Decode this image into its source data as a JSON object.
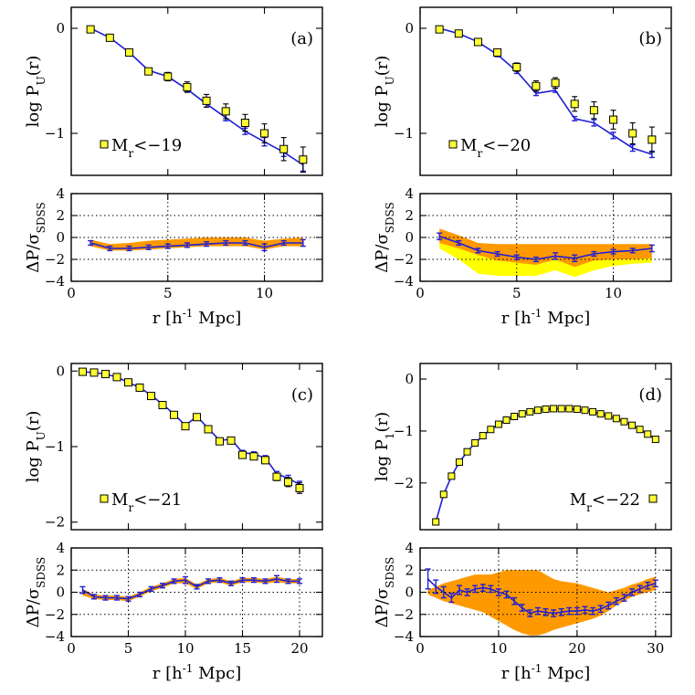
{
  "chart_data": [
    {
      "id": "a",
      "type": "line",
      "panel_label": "(a)",
      "legend_label": "M",
      "legend_sub": "r",
      "legend_value": "<−19",
      "legend_placement": "bottom-left",
      "top": {
        "ylabel": "log  P",
        "ylabel_sub": "U",
        "ylabel_tail": "(r)",
        "xlim": [
          0,
          13
        ],
        "ylim": [
          -1.4,
          0.2
        ],
        "xticks": [
          0,
          5,
          10
        ],
        "yticks": [
          0,
          -1
        ],
        "x": [
          1,
          2,
          3,
          4,
          5,
          6,
          7,
          8,
          9,
          10,
          11,
          12
        ],
        "model": [
          0,
          -0.09,
          -0.23,
          -0.4,
          -0.46,
          -0.58,
          -0.72,
          -0.85,
          -0.98,
          -1.08,
          -1.18,
          -1.3
        ],
        "model_err": [
          0.01,
          0.01,
          0.02,
          0.02,
          0.02,
          0.02,
          0.03,
          0.03,
          0.03,
          0.04,
          0.04,
          0.06
        ],
        "sdss": [
          -0.01,
          -0.09,
          -0.23,
          -0.41,
          -0.46,
          -0.56,
          -0.69,
          -0.79,
          -0.9,
          -1.0,
          -1.15,
          -1.25
        ],
        "sdss_err": [
          0.01,
          0.02,
          0.03,
          0.03,
          0.04,
          0.05,
          0.06,
          0.07,
          0.08,
          0.09,
          0.11,
          0.12
        ]
      },
      "bottom": {
        "ylabel": "ΔP/σ",
        "ylabel_sub": "SDSS",
        "xlabel": "r  [h",
        "xlabel_sup": "-1",
        "xlabel_tail": " Mpc]",
        "ylim": [
          -4,
          4
        ],
        "yticks": [
          -4,
          -2,
          0,
          2,
          4
        ],
        "xticks": [
          0,
          5,
          10
        ],
        "resid": [
          -0.5,
          -1.0,
          -1.0,
          -0.9,
          -0.8,
          -0.7,
          -0.6,
          -0.5,
          -0.5,
          -0.9,
          -0.5,
          -0.5
        ],
        "resid_err": [
          0.2,
          0.2,
          0.2,
          0.2,
          0.2,
          0.2,
          0.2,
          0.2,
          0.2,
          0.3,
          0.2,
          0.3
        ],
        "band_orange": [
          [
            -0.8,
            -0.2
          ],
          [
            -1.2,
            -0.6
          ],
          [
            -1.2,
            -0.5
          ],
          [
            -1.1,
            -0.3
          ],
          [
            -1.0,
            -0.2
          ],
          [
            -0.9,
            -0.1
          ],
          [
            -0.8,
            0.0
          ],
          [
            -0.8,
            0.0
          ],
          [
            -0.8,
            0.0
          ],
          [
            -1.1,
            -0.3
          ],
          [
            -0.8,
            -0.1
          ],
          [
            -0.8,
            0.0
          ]
        ],
        "band_yellow": null
      }
    },
    {
      "id": "b",
      "type": "line",
      "panel_label": "(b)",
      "legend_label": "M",
      "legend_sub": "r",
      "legend_value": "<−20",
      "legend_placement": "bottom-left",
      "top": {
        "ylabel": "log  P",
        "ylabel_sub": "U",
        "ylabel_tail": "(r)",
        "xlim": [
          0,
          13
        ],
        "ylim": [
          -1.4,
          0.2
        ],
        "xticks": [
          0,
          5,
          10
        ],
        "yticks": [
          0,
          -1
        ],
        "x": [
          1,
          2,
          3,
          4,
          5,
          6,
          7,
          8,
          9,
          10,
          11,
          12
        ],
        "model": [
          0,
          -0.05,
          -0.13,
          -0.25,
          -0.41,
          -0.62,
          -0.59,
          -0.86,
          -0.9,
          -1.02,
          -1.14,
          -1.2
        ],
        "model_err": [
          0.01,
          0.01,
          0.02,
          0.02,
          0.02,
          0.02,
          0.02,
          0.02,
          0.03,
          0.03,
          0.03,
          0.03
        ],
        "sdss": [
          -0.01,
          -0.05,
          -0.13,
          -0.23,
          -0.37,
          -0.55,
          -0.52,
          -0.72,
          -0.78,
          -0.87,
          -1.0,
          -1.06
        ],
        "sdss_err": [
          0.01,
          0.01,
          0.02,
          0.03,
          0.04,
          0.05,
          0.05,
          0.07,
          0.08,
          0.09,
          0.1,
          0.12
        ]
      },
      "bottom": {
        "ylabel": "ΔP/σ",
        "ylabel_sub": "SDSS",
        "xlabel": "r  [h",
        "xlabel_sup": "-1",
        "xlabel_tail": " Mpc]",
        "ylim": [
          -4,
          4
        ],
        "yticks": [
          -4,
          -2,
          0,
          2,
          4
        ],
        "xticks": [
          0,
          5,
          10
        ],
        "resid": [
          0.1,
          -0.5,
          -1.2,
          -1.5,
          -1.8,
          -2.0,
          -1.7,
          -1.9,
          -1.5,
          -1.3,
          -1.2,
          -1.0
        ],
        "resid_err": [
          0.3,
          0.2,
          0.2,
          0.2,
          0.2,
          0.2,
          0.3,
          0.3,
          0.2,
          0.2,
          0.2,
          0.3
        ],
        "band_orange": [
          [
            -0.5,
            0.8
          ],
          [
            -1.0,
            0.2
          ],
          [
            -1.6,
            -0.5
          ],
          [
            -2.1,
            -0.6
          ],
          [
            -2.3,
            -0.6
          ],
          [
            -2.5,
            -0.6
          ],
          [
            -2.0,
            -0.6
          ],
          [
            -2.7,
            -0.6
          ],
          [
            -2.1,
            -0.6
          ],
          [
            -2.0,
            -0.6
          ],
          [
            -2.0,
            -0.6
          ],
          [
            -1.9,
            -0.6
          ]
        ],
        "band_yellow": [
          [
            -1.0,
            0.5
          ],
          [
            -2.0,
            -0.5
          ],
          [
            -3.3,
            -1.4
          ],
          [
            -3.5,
            -1.6
          ],
          [
            -3.5,
            -1.6
          ],
          [
            -3.5,
            -1.6
          ],
          [
            -3.0,
            -1.6
          ],
          [
            -3.6,
            -1.6
          ],
          [
            -3.0,
            -1.6
          ],
          [
            -2.6,
            -1.5
          ],
          [
            -2.4,
            -1.5
          ],
          [
            -2.3,
            -1.5
          ]
        ]
      }
    },
    {
      "id": "c",
      "type": "line",
      "panel_label": "(c)",
      "legend_label": "M",
      "legend_sub": "r",
      "legend_value": "<−21",
      "legend_placement": "bottom-left",
      "top": {
        "ylabel": "log  P",
        "ylabel_sub": "U",
        "ylabel_tail": "(r)",
        "xlim": [
          0,
          22
        ],
        "ylim": [
          -2.1,
          0.1
        ],
        "xticks": [
          0,
          5,
          10,
          15,
          20
        ],
        "yticks": [
          0,
          -1,
          -2
        ],
        "x": [
          1,
          2,
          3,
          4,
          5,
          6,
          7,
          8,
          9,
          10,
          11,
          12,
          13,
          14,
          15,
          16,
          17,
          18,
          19,
          20
        ],
        "model": [
          -0.01,
          -0.02,
          -0.04,
          -0.08,
          -0.15,
          -0.22,
          -0.32,
          -0.44,
          -0.57,
          -0.72,
          -0.6,
          -0.76,
          -0.92,
          -0.9,
          -1.08,
          -1.1,
          -1.15,
          -1.36,
          -1.42,
          -1.5
        ],
        "model_err": [
          0.005,
          0.005,
          0.01,
          0.01,
          0.01,
          0.01,
          0.01,
          0.02,
          0.02,
          0.02,
          0.02,
          0.02,
          0.02,
          0.02,
          0.03,
          0.03,
          0.03,
          0.03,
          0.04,
          0.04
        ],
        "sdss": [
          -0.01,
          -0.02,
          -0.04,
          -0.08,
          -0.15,
          -0.22,
          -0.33,
          -0.45,
          -0.58,
          -0.73,
          -0.61,
          -0.77,
          -0.93,
          -0.92,
          -1.11,
          -1.13,
          -1.18,
          -1.4,
          -1.47,
          -1.55
        ],
        "sdss_err": [
          0.005,
          0.005,
          0.01,
          0.01,
          0.01,
          0.01,
          0.02,
          0.02,
          0.02,
          0.02,
          0.02,
          0.03,
          0.03,
          0.03,
          0.04,
          0.04,
          0.04,
          0.05,
          0.06,
          0.07
        ]
      },
      "bottom": {
        "ylabel": "ΔP/σ",
        "ylabel_sub": "SDSS",
        "xlabel": "r  [h",
        "xlabel_sup": "-1",
        "xlabel_tail": " Mpc]",
        "ylim": [
          -4,
          4
        ],
        "yticks": [
          -4,
          -2,
          0,
          2,
          4
        ],
        "xticks": [
          0,
          5,
          10,
          15,
          20
        ],
        "resid": [
          0.2,
          -0.4,
          -0.5,
          -0.5,
          -0.6,
          -0.2,
          0.3,
          0.6,
          1.0,
          1.1,
          0.5,
          1.0,
          1.1,
          0.8,
          1.1,
          1.1,
          1.0,
          1.2,
          1.0,
          1.0
        ],
        "resid_err": [
          0.3,
          0.2,
          0.2,
          0.2,
          0.2,
          0.2,
          0.2,
          0.2,
          0.2,
          0.3,
          0.2,
          0.2,
          0.2,
          0.2,
          0.2,
          0.2,
          0.2,
          0.3,
          0.2,
          0.2
        ],
        "band_orange": [
          [
            -0.3,
            0.3
          ],
          [
            -0.6,
            -0.2
          ],
          [
            -0.7,
            -0.3
          ],
          [
            -0.7,
            -0.3
          ],
          [
            -0.8,
            -0.4
          ],
          [
            -0.4,
            0.0
          ],
          [
            0.1,
            0.5
          ],
          [
            0.4,
            0.8
          ],
          [
            0.8,
            1.2
          ],
          [
            0.8,
            1.3
          ],
          [
            0.3,
            0.7
          ],
          [
            0.8,
            1.2
          ],
          [
            0.9,
            1.3
          ],
          [
            0.6,
            1.0
          ],
          [
            0.9,
            1.3
          ],
          [
            0.9,
            1.3
          ],
          [
            0.8,
            1.2
          ],
          [
            0.9,
            1.4
          ],
          [
            0.8,
            1.2
          ],
          [
            0.8,
            1.2
          ]
        ],
        "band_yellow": null
      }
    },
    {
      "id": "d",
      "type": "line",
      "panel_label": "(d)",
      "legend_label": "M",
      "legend_sub": "r",
      "legend_value": "<−22",
      "legend_placement": "bottom-right",
      "top": {
        "ylabel": "log  P",
        "ylabel_sub": "1",
        "ylabel_tail": "(r)",
        "xlim": [
          0,
          32
        ],
        "ylim": [
          -2.9,
          0.3
        ],
        "xticks": [
          0,
          10,
          20,
          30
        ],
        "yticks": [
          0,
          -1,
          -2
        ],
        "x": [
          2,
          3,
          4,
          5,
          6,
          7,
          8,
          9,
          10,
          11,
          12,
          13,
          14,
          15,
          16,
          17,
          18,
          19,
          20,
          21,
          22,
          23,
          24,
          25,
          26,
          27,
          28,
          29,
          30
        ],
        "model": [
          -2.75,
          -2.22,
          -1.87,
          -1.6,
          -1.4,
          -1.23,
          -1.09,
          -0.97,
          -0.87,
          -0.79,
          -0.72,
          -0.67,
          -0.63,
          -0.6,
          -0.58,
          -0.57,
          -0.57,
          -0.57,
          -0.58,
          -0.6,
          -0.63,
          -0.67,
          -0.71,
          -0.76,
          -0.82,
          -0.89,
          -0.97,
          -1.06,
          -1.16
        ],
        "model_err": [
          0.05,
          0.03,
          0.02,
          0.02,
          0.02,
          0.01,
          0.01,
          0.01,
          0.01,
          0.01,
          0.01,
          0.01,
          0.01,
          0.01,
          0.01,
          0.01,
          0.01,
          0.01,
          0.01,
          0.01,
          0.01,
          0.01,
          0.01,
          0.01,
          0.01,
          0.01,
          0.01,
          0.01,
          0.02
        ],
        "sdss": [
          -2.75,
          -2.22,
          -1.87,
          -1.6,
          -1.4,
          -1.23,
          -1.09,
          -0.97,
          -0.87,
          -0.79,
          -0.72,
          -0.67,
          -0.63,
          -0.6,
          -0.58,
          -0.57,
          -0.57,
          -0.57,
          -0.58,
          -0.6,
          -0.63,
          -0.67,
          -0.71,
          -0.76,
          -0.82,
          -0.89,
          -0.97,
          -1.06,
          -1.16
        ],
        "sdss_err": [
          0.05,
          0.03,
          0.02,
          0.02,
          0.02,
          0.01,
          0.01,
          0.01,
          0.01,
          0.01,
          0.01,
          0.01,
          0.01,
          0.01,
          0.01,
          0.01,
          0.01,
          0.01,
          0.01,
          0.01,
          0.01,
          0.01,
          0.01,
          0.01,
          0.01,
          0.01,
          0.01,
          0.01,
          0.02
        ]
      },
      "bottom": {
        "ylabel": "ΔP/σ",
        "ylabel_sub": "SDSS",
        "xlabel": "r  [h",
        "xlabel_sup": "-1",
        "xlabel_tail": " Mpc]",
        "ylim": [
          -4,
          4
        ],
        "yticks": [
          -4,
          -2,
          0,
          2,
          4
        ],
        "xticks": [
          0,
          10,
          20,
          30
        ],
        "resid_x": [
          1,
          2,
          3,
          4,
          5,
          6,
          7,
          8,
          9,
          10,
          11,
          12,
          13,
          14,
          15,
          16,
          17,
          18,
          19,
          20,
          21,
          22,
          23,
          24,
          25,
          26,
          27,
          28,
          29,
          30
        ],
        "resid": [
          1.2,
          0.5,
          0.0,
          -0.5,
          0.2,
          0.0,
          0.3,
          0.4,
          0.3,
          0.0,
          -0.2,
          -0.8,
          -1.4,
          -1.9,
          -1.7,
          -1.8,
          -1.9,
          -1.8,
          -1.7,
          -1.7,
          -1.6,
          -1.7,
          -1.5,
          -1.2,
          -0.8,
          -0.5,
          0.0,
          0.3,
          0.6,
          0.8
        ],
        "resid_err": [
          0.9,
          0.6,
          0.5,
          0.4,
          0.4,
          0.3,
          0.3,
          0.3,
          0.3,
          0.3,
          0.3,
          0.3,
          0.3,
          0.3,
          0.3,
          0.3,
          0.3,
          0.3,
          0.3,
          0.3,
          0.3,
          0.3,
          0.3,
          0.3,
          0.3,
          0.3,
          0.3,
          0.3,
          0.3,
          0.3
        ],
        "band_orange": [
          [
            -0.2,
            0.2
          ],
          [
            -0.5,
            0.5
          ],
          [
            -0.8,
            0.8
          ],
          [
            -1.0,
            1.0
          ],
          [
            -1.2,
            1.2
          ],
          [
            -1.4,
            1.4
          ],
          [
            -1.6,
            1.6
          ],
          [
            -1.8,
            1.6
          ],
          [
            -2.2,
            1.6
          ],
          [
            -2.6,
            1.8
          ],
          [
            -3.0,
            2.0
          ],
          [
            -3.4,
            2.0
          ],
          [
            -3.7,
            2.0
          ],
          [
            -3.9,
            2.0
          ],
          [
            -3.9,
            2.0
          ],
          [
            -3.7,
            1.6
          ],
          [
            -3.4,
            1.2
          ],
          [
            -3.2,
            1.0
          ],
          [
            -3.0,
            0.9
          ],
          [
            -2.8,
            0.8
          ],
          [
            -2.6,
            0.6
          ],
          [
            -2.4,
            0.4
          ],
          [
            -2.1,
            0.2
          ],
          [
            -1.7,
            0.0
          ],
          [
            -1.2,
            0.2
          ],
          [
            -0.8,
            0.4
          ],
          [
            -0.4,
            0.7
          ],
          [
            -0.2,
            0.9
          ],
          [
            0.0,
            1.2
          ],
          [
            0.2,
            1.4
          ]
        ],
        "band_yellow": null
      }
    }
  ],
  "colors": {
    "model": "#1f1fd6",
    "sdss_fill": "#ffff33",
    "band_orange": "#ff9900",
    "band_yellow": "#ffff00"
  }
}
